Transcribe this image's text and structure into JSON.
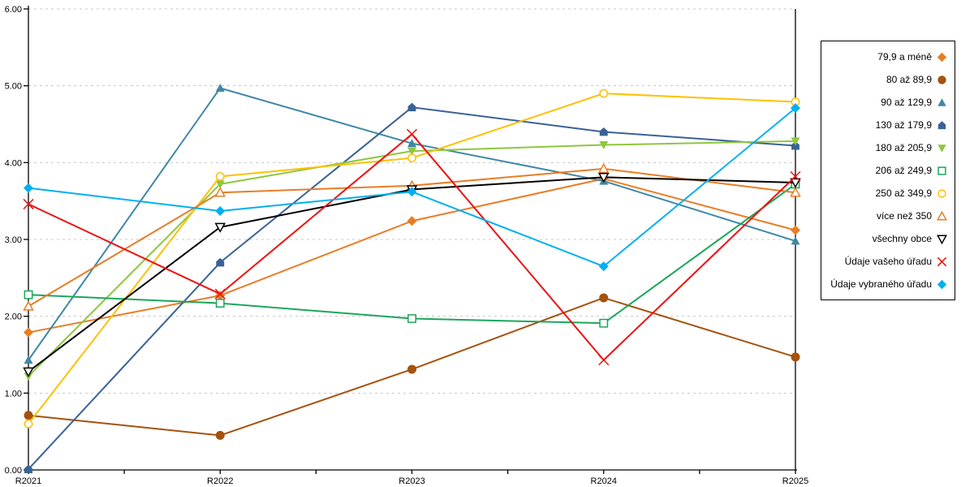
{
  "chart_data": {
    "type": "line",
    "title": "",
    "x": [
      "R2021",
      "R2022",
      "R2023",
      "R2024",
      "R2025"
    ],
    "ylim": [
      0,
      6
    ],
    "y_tick_labels": [
      "0.00",
      "1.00",
      "2.00",
      "3.00",
      "4.00",
      "5.00",
      "6.00"
    ],
    "grid": "horizontal-dashed",
    "legend_position": "right-outside",
    "axis_color": "#000000",
    "gridline_color": "#c8c8c8",
    "series": [
      {
        "name": "79,9 a méně",
        "color": "#e87d25",
        "marker": "diamond-filled",
        "values": [
          1.79,
          2.27,
          3.24,
          3.79,
          3.12
        ]
      },
      {
        "name": "80 až 89,9",
        "color": "#a4520d",
        "marker": "circle-filled",
        "values": [
          0.71,
          0.45,
          1.31,
          2.24,
          1.47
        ]
      },
      {
        "name": "90 až 129,9",
        "color": "#3e88a5",
        "marker": "triangle-up-filled",
        "values": [
          1.43,
          4.97,
          4.25,
          3.76,
          2.98
        ]
      },
      {
        "name": "130 až 179,9",
        "color": "#3a6296",
        "marker": "pentagon-filled",
        "values": [
          0.01,
          2.7,
          4.72,
          4.4,
          4.22
        ]
      },
      {
        "name": "180 až 205,9",
        "color": "#8fc640",
        "marker": "triangle-down-filled",
        "values": [
          1.22,
          3.72,
          4.15,
          4.23,
          4.28
        ]
      },
      {
        "name": "206 až 249,9",
        "color": "#1ca65b",
        "marker": "square-open",
        "values": [
          2.28,
          2.17,
          1.97,
          1.91,
          3.72
        ]
      },
      {
        "name": "250 až 349,9",
        "color": "#ffc000",
        "marker": "circle-open",
        "values": [
          0.6,
          3.82,
          4.06,
          4.9,
          4.79
        ]
      },
      {
        "name": "více než 350",
        "color": "#e87d25",
        "marker": "triangle-up-open",
        "values": [
          2.13,
          3.61,
          3.7,
          3.92,
          3.61
        ]
      },
      {
        "name": "všechny obce",
        "color": "#000000",
        "marker": "triangle-down-open",
        "values": [
          1.28,
          3.16,
          3.65,
          3.81,
          3.74
        ]
      },
      {
        "name": "Údaje vašeho úřadu",
        "color": "#ee1111",
        "marker": "x",
        "values": [
          3.46,
          2.29,
          4.37,
          1.43,
          3.82
        ]
      },
      {
        "name": "Údaje vybraného úřadu",
        "color": "#00b0f0",
        "marker": "diamond-filled",
        "values": [
          3.67,
          3.37,
          3.62,
          2.65,
          4.71
        ]
      }
    ]
  }
}
